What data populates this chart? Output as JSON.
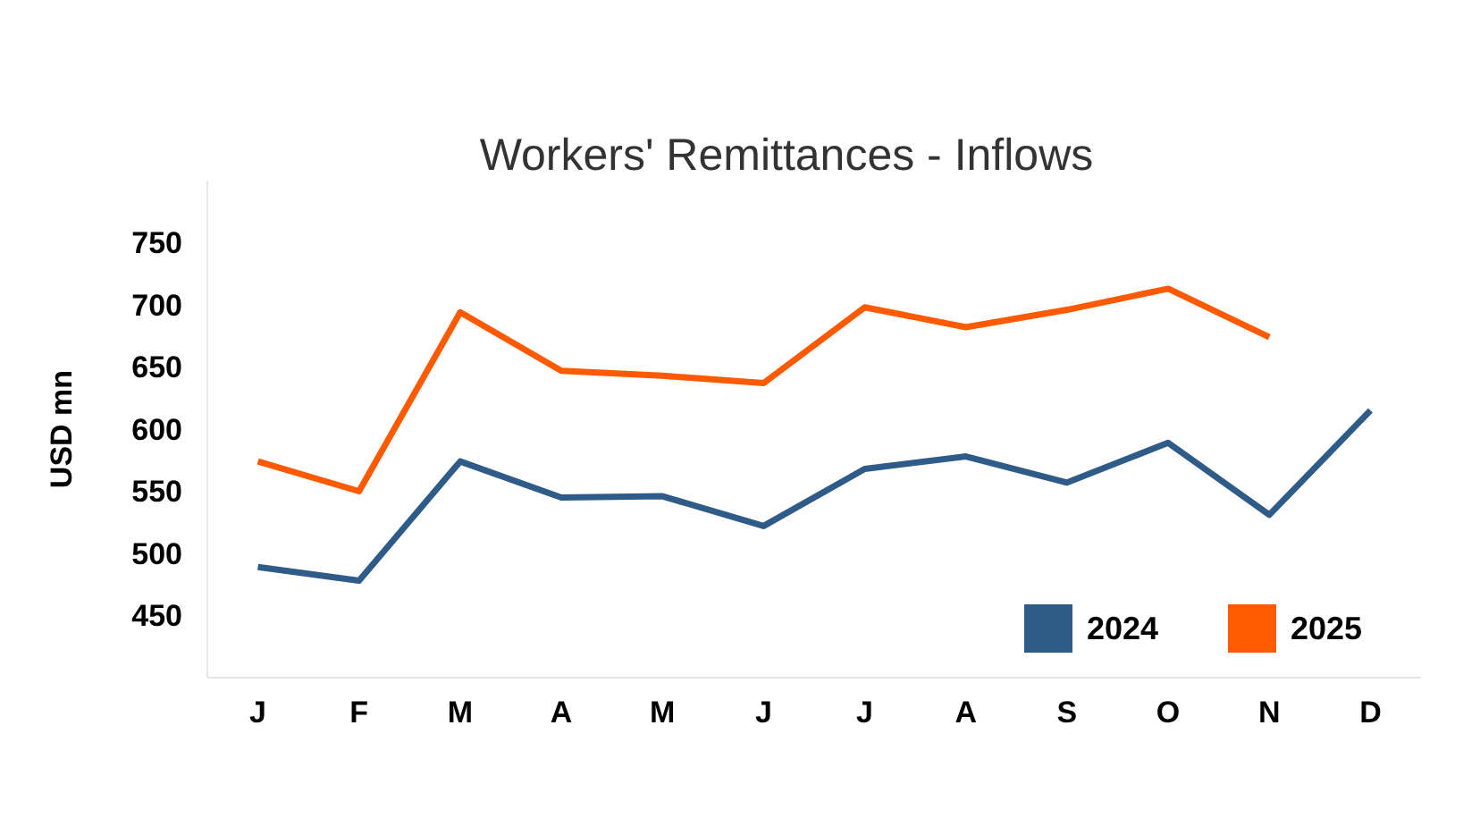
{
  "chart_data": {
    "type": "line",
    "title": "Workers' Remittances  - Inflows",
    "ylabel": "USD mn",
    "categories": [
      "J",
      "F",
      "M",
      "A",
      "M",
      "J",
      "J",
      "A",
      "S",
      "O",
      "N",
      "D"
    ],
    "series": [
      {
        "name": "2024",
        "color": "#2e5b88",
        "values": [
          489,
          478,
          574,
          545,
          546,
          522,
          568,
          578,
          557,
          589,
          531,
          615
        ]
      },
      {
        "name": "2025",
        "color": "#ff5a00",
        "values": [
          574,
          550,
          694,
          647,
          643,
          637,
          698,
          682,
          696,
          713,
          674,
          null
        ]
      }
    ],
    "ylim": [
      400,
      800
    ],
    "yticks": [
      450,
      500,
      550,
      600,
      650,
      700,
      750
    ],
    "grid": false,
    "legend": "bottom right",
    "marker": "none",
    "line_style": "solid"
  }
}
